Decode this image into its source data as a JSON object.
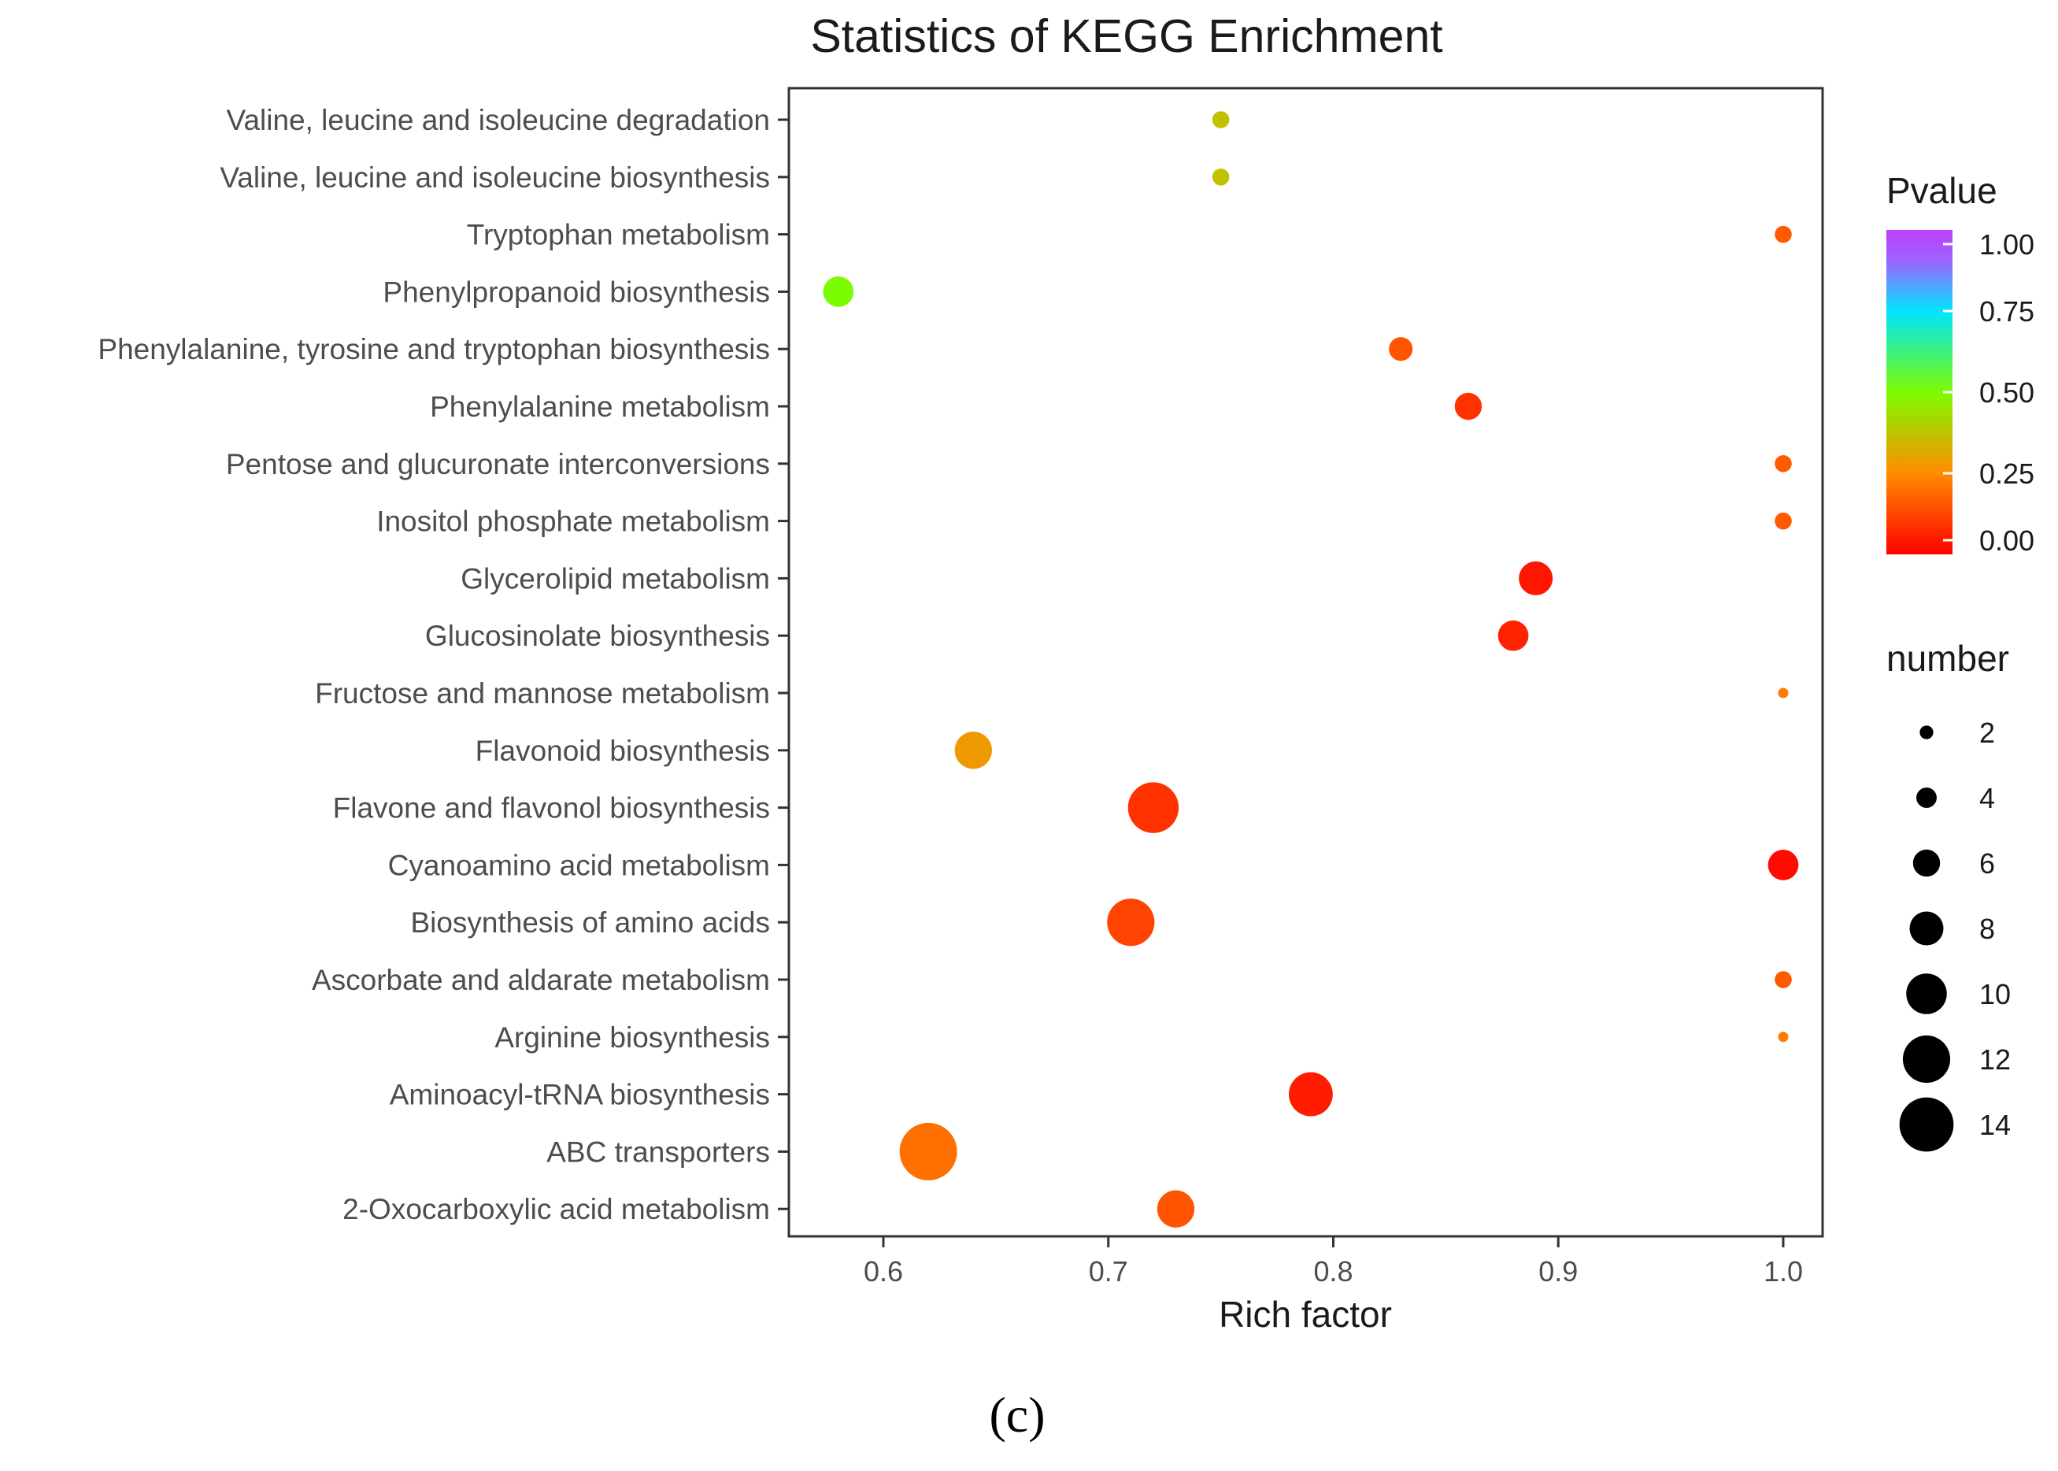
{
  "chart_data": {
    "type": "scatter",
    "title": "Statistics of KEGG Enrichment",
    "xlabel": "Rich factor",
    "ylabel": "",
    "xlim": [
      0.56,
      1.02
    ],
    "x_ticks": [
      0.6,
      0.7,
      0.8,
      0.9,
      1.0
    ],
    "x_tick_labels": [
      "0.6",
      "0.7",
      "0.8",
      "0.9",
      "1.0"
    ],
    "categories": [
      "Valine, leucine and isoleucine degradation",
      "Valine, leucine and isoleucine biosynthesis",
      "Tryptophan metabolism",
      "Phenylpropanoid biosynthesis",
      "Phenylalanine, tyrosine and tryptophan biosynthesis",
      "Phenylalanine metabolism",
      "Pentose and glucuronate interconversions",
      "Inositol phosphate metabolism",
      "Glycerolipid metabolism",
      "Glucosinolate biosynthesis",
      "Fructose and mannose metabolism",
      "Flavonoid biosynthesis",
      "Flavone and flavonol biosynthesis",
      "Cyanoamino acid metabolism",
      "Biosynthesis of amino acids",
      "Ascorbate and aldarate metabolism",
      "Arginine biosynthesis",
      "Aminoacyl-tRNA biosynthesis",
      "ABC transporters",
      "2-Oxocarboxylic acid metabolism"
    ],
    "points": [
      {
        "term": "Valine, leucine and isoleucine degradation",
        "rich_factor": 0.75,
        "number": 3,
        "pvalue": 0.37
      },
      {
        "term": "Valine, leucine and isoleucine biosynthesis",
        "rich_factor": 0.75,
        "number": 3,
        "pvalue": 0.37
      },
      {
        "term": "Tryptophan metabolism",
        "rich_factor": 1.0,
        "number": 3,
        "pvalue": 0.16
      },
      {
        "term": "Phenylpropanoid biosynthesis",
        "rich_factor": 0.58,
        "number": 7,
        "pvalue": 0.5
      },
      {
        "term": "Phenylalanine, tyrosine and tryptophan biosynthesis",
        "rich_factor": 0.83,
        "number": 5,
        "pvalue": 0.15
      },
      {
        "term": "Phenylalanine metabolism",
        "rich_factor": 0.86,
        "number": 6,
        "pvalue": 0.09
      },
      {
        "term": "Pentose and glucuronate interconversions",
        "rich_factor": 1.0,
        "number": 3,
        "pvalue": 0.16
      },
      {
        "term": "Inositol phosphate metabolism",
        "rich_factor": 1.0,
        "number": 3,
        "pvalue": 0.16
      },
      {
        "term": "Glycerolipid metabolism",
        "rich_factor": 0.89,
        "number": 8,
        "pvalue": 0.04
      },
      {
        "term": "Glucosinolate biosynthesis",
        "rich_factor": 0.88,
        "number": 7,
        "pvalue": 0.06
      },
      {
        "term": "Fructose and mannose metabolism",
        "rich_factor": 1.0,
        "number": 1,
        "pvalue": 0.22
      },
      {
        "term": "Flavonoid biosynthesis",
        "rich_factor": 0.64,
        "number": 9,
        "pvalue": 0.28
      },
      {
        "term": "Flavone and flavonol biosynthesis",
        "rich_factor": 0.72,
        "number": 13,
        "pvalue": 0.09
      },
      {
        "term": "Cyanoamino acid metabolism",
        "rich_factor": 1.0,
        "number": 7,
        "pvalue": 0.02
      },
      {
        "term": "Biosynthesis of amino acids",
        "rich_factor": 0.71,
        "number": 12,
        "pvalue": 0.12
      },
      {
        "term": "Ascorbate and aldarate metabolism",
        "rich_factor": 1.0,
        "number": 3,
        "pvalue": 0.16
      },
      {
        "term": "Arginine biosynthesis",
        "rich_factor": 1.0,
        "number": 1,
        "pvalue": 0.22
      },
      {
        "term": "Aminoacyl-tRNA biosynthesis",
        "rich_factor": 0.79,
        "number": 11,
        "pvalue": 0.05
      },
      {
        "term": "ABC transporters",
        "rich_factor": 0.62,
        "number": 15,
        "pvalue": 0.2
      },
      {
        "term": "2-Oxocarboxylic acid metabolism",
        "rich_factor": 0.73,
        "number": 9,
        "pvalue": 0.15
      }
    ],
    "color_legend": {
      "title": "Pvalue",
      "ticks": [
        1.0,
        0.75,
        0.5,
        0.25,
        0.0
      ],
      "tick_labels": [
        "1.00",
        "0.75",
        "0.50",
        "0.25",
        "0.00"
      ],
      "range": [
        0.0,
        1.0
      ],
      "colors": [
        "#ff0000",
        "#ff8c00",
        "#7cfc00",
        "#00e5ff",
        "#9966ff",
        "#bf3eff"
      ]
    },
    "size_legend": {
      "title": "number",
      "values": [
        2,
        4,
        6,
        8,
        10,
        12,
        14
      ],
      "labels": [
        "2",
        "4",
        "6",
        "8",
        "10",
        "12",
        "14"
      ]
    },
    "panel_label": "(c)"
  }
}
